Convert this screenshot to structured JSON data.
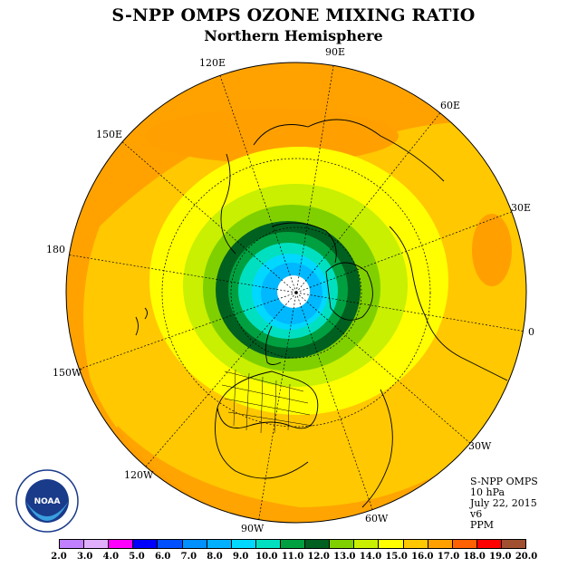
{
  "title": "S-NPP OMPS OZONE MIXING RATIO",
  "subtitle": "Northern Hemisphere",
  "longitude_labels": [
    {
      "label": "90E"
    },
    {
      "label": "120E"
    },
    {
      "label": "60E"
    },
    {
      "label": "150E"
    },
    {
      "label": "30E"
    },
    {
      "label": "180"
    },
    {
      "label": "0"
    },
    {
      "label": "150W"
    },
    {
      "label": "30W"
    },
    {
      "label": "120W"
    },
    {
      "label": "60W"
    },
    {
      "label": "90W"
    }
  ],
  "info": {
    "instrument": "S-NPP OMPS",
    "pressure": "10 hPa",
    "date": "July 22, 2015",
    "version": "v6",
    "units": "PPM"
  },
  "logo": {
    "text": "NOAA",
    "ring_text": "NATIONAL OCEANIC AND ATMOSPHERIC ADMINISTRATION · U.S. DEPARTMENT OF COMMERCE"
  },
  "colorbar": {
    "ticks": [
      "2.0",
      "3.0",
      "4.0",
      "5.0",
      "6.0",
      "7.0",
      "8.0",
      "9.0",
      "10.0",
      "11.0",
      "12.0",
      "13.0",
      "14.0",
      "15.0",
      "16.0",
      "17.0",
      "18.0",
      "19.0",
      "20.0"
    ],
    "colors": [
      "#c080ff",
      "#e0b0ff",
      "#ff00ff",
      "#0000ff",
      "#0050ff",
      "#0090ff",
      "#00b0ff",
      "#00d8ff",
      "#00e0c0",
      "#00a040",
      "#006020",
      "#80d000",
      "#c8f000",
      "#ffff00",
      "#ffc800",
      "#ffa000",
      "#ff6000",
      "#ff0000",
      "#a05030"
    ]
  },
  "colors": {
    "background": "#ffffff",
    "rings": [
      "#ffa000",
      "#ffc800",
      "#ffff00",
      "#c8f000",
      "#80d000",
      "#00a040",
      "#006020",
      "#00e0c0",
      "#00d8ff",
      "#00b0ff",
      "#ffffff"
    ]
  }
}
